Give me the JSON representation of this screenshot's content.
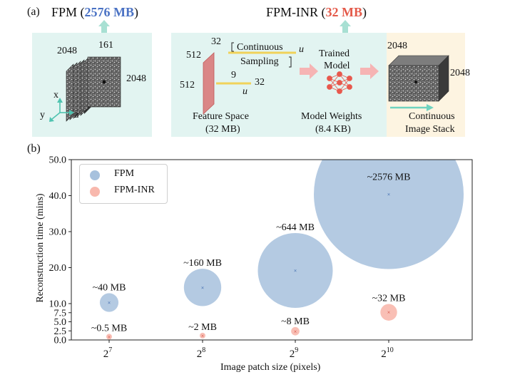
{
  "panel_a": {
    "label": "(a)",
    "fpm_title_prefix": "FPM (",
    "fpm_title_size": "2576 MB",
    "fpm_title_suffix": ")",
    "inr_title_prefix": "FPM-INR (",
    "inr_title_size": "32 MB",
    "inr_title_suffix": ")",
    "fpm_stack": {
      "dim_width": "2048",
      "dim_depth": "161",
      "dim_height": "2048"
    },
    "axes": {
      "x": "x",
      "y": "y",
      "z": "z"
    },
    "feature": {
      "dim_512_top": "512",
      "dim_32": "32",
      "dim_512_left": "512",
      "dim_9": "9",
      "dim_32_right": "32",
      "u_bottom": "u",
      "caption_line1": "Feature Space",
      "caption_line2": "(32 MB)"
    },
    "sampling": {
      "line1": "Continuous",
      "line2": "Sampling",
      "u_top": "u"
    },
    "model": {
      "line1": "Trained",
      "line2": "Model",
      "caption_line1": "Model Weights",
      "caption_line2": "(8.4 KB)"
    },
    "output_stack": {
      "dim_width": "2048",
      "dim_height": "2048",
      "caption_line1": "Continuous",
      "caption_line2": "Image Stack"
    },
    "colors": {
      "fpm_accent": "#4a72c4",
      "inr_accent": "#e45a4a",
      "panel_bg": "#e2f4f1",
      "stack_bg": "#fdf4e1"
    }
  },
  "panel_b": {
    "label": "(b)"
  },
  "chart_data": {
    "type": "scatter",
    "xlabel": "Image patch size (pixels)",
    "ylabel": "Reconstruction time (mins)",
    "ylim": [
      0,
      50
    ],
    "y_ticks": [
      "0.0",
      "2.5",
      "5.0",
      "7.5",
      "10.0",
      "20.0",
      "30.0",
      "40.0",
      "50.0"
    ],
    "x_ticks": [
      {
        "base": "2",
        "exp": "7"
      },
      {
        "base": "2",
        "exp": "8"
      },
      {
        "base": "2",
        "exp": "9"
      },
      {
        "base": "2",
        "exp": "10"
      }
    ],
    "legend": {
      "position": "top-left"
    },
    "series": [
      {
        "name": "FPM",
        "color": "#a7c1dd",
        "points": [
          {
            "x": 128,
            "time": 10.3,
            "memory": 40,
            "label": "~40 MB"
          },
          {
            "x": 256,
            "time": 14.5,
            "memory": 160,
            "label": "~160 MB"
          },
          {
            "x": 512,
            "time": 19.2,
            "memory": 644,
            "label": "~644 MB"
          },
          {
            "x": 1024,
            "time": 40.4,
            "memory": 2576,
            "label": "~2576 MB"
          }
        ]
      },
      {
        "name": "FPM-INR",
        "color": "#f8b8ad",
        "points": [
          {
            "x": 128,
            "time": 0.9,
            "memory": 0.5,
            "label": "~0.5 MB"
          },
          {
            "x": 256,
            "time": 1.2,
            "memory": 2,
            "label": "~2 MB"
          },
          {
            "x": 512,
            "time": 2.4,
            "memory": 8,
            "label": "~8 MB"
          },
          {
            "x": 1024,
            "time": 7.6,
            "memory": 32,
            "label": "~32 MB"
          }
        ]
      }
    ]
  }
}
